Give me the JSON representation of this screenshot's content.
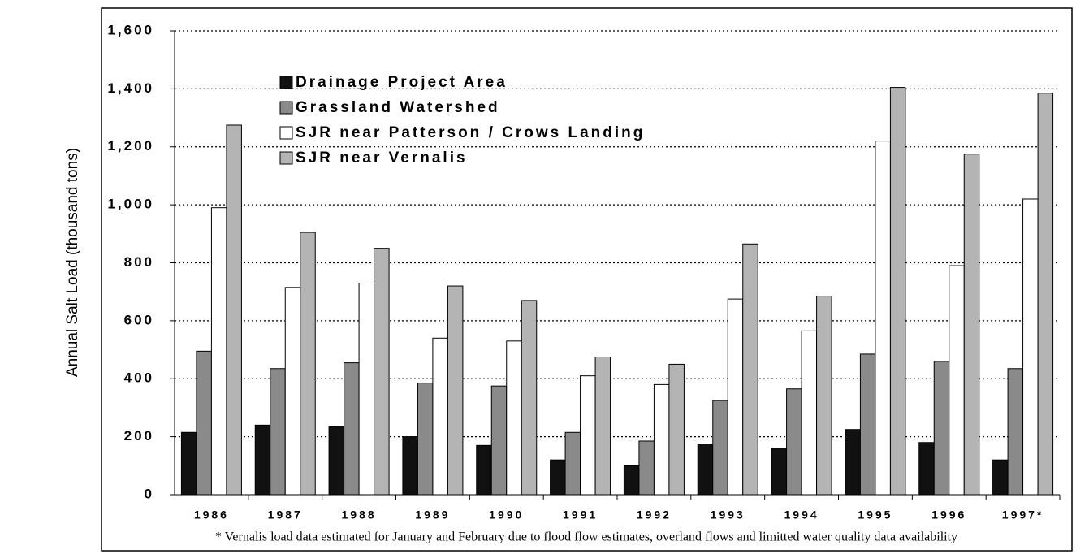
{
  "chart_data": {
    "type": "bar",
    "y_label": "Annual Salt Load (thousand tons)",
    "footnote": "* Vernalis load data estimated for January and February due to flood flow estimates, overland flows and limitted water quality data availability",
    "categories": [
      "1986",
      "1987",
      "1988",
      "1989",
      "1990",
      "1991",
      "1992",
      "1993",
      "1994",
      "1995",
      "1996",
      "1997*"
    ],
    "series": [
      {
        "name": "Drainage Project Area",
        "color": "#111111",
        "values": [
          215,
          240,
          235,
          200,
          170,
          120,
          100,
          175,
          160,
          225,
          180,
          120
        ]
      },
      {
        "name": "Grassland Watershed",
        "color": "#8a8a8a",
        "values": [
          495,
          435,
          455,
          385,
          375,
          215,
          185,
          325,
          365,
          485,
          460,
          435
        ]
      },
      {
        "name": "SJR near Patterson / Crows Landing",
        "color": "#ffffff",
        "values": [
          990,
          715,
          730,
          540,
          530,
          410,
          380,
          675,
          565,
          1220,
          790,
          1020
        ]
      },
      {
        "name": "SJR near Vernalis",
        "color": "#b4b4b4",
        "values": [
          1275,
          905,
          850,
          720,
          670,
          475,
          450,
          865,
          685,
          1405,
          1175,
          1385
        ]
      }
    ],
    "ylim": [
      0,
      1600
    ],
    "yticks": [
      0,
      200,
      400,
      600,
      800,
      {
        "value": 1000,
        "label": "1,000"
      },
      {
        "value": 1200,
        "label": "1,200"
      },
      {
        "value": 1400,
        "label": "1,400"
      },
      {
        "value": 1600,
        "label": "1,600"
      }
    ],
    "grid": true
  }
}
